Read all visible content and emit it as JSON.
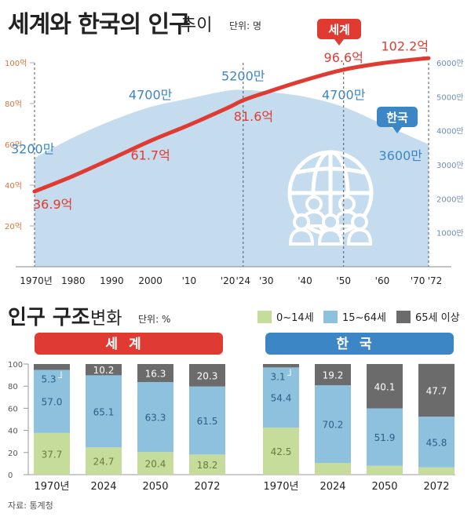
{
  "header": {
    "title_main": "세계와 한국의 인구",
    "title_sub": "추이",
    "unit": "단위: 명"
  },
  "bottom_header": {
    "title_main": "인구 구조",
    "title_sub": "변화",
    "unit": "단위: %"
  },
  "legend": [
    {
      "label": "0~14세",
      "color": "#c5dc9b"
    },
    {
      "label": "15~64세",
      "color": "#8ec1de"
    },
    {
      "label": "65세 이상",
      "color": "#6c6b6b"
    }
  ],
  "source": "자료: 통계청",
  "colors": {
    "world": "#e03b32",
    "korea": "#3d86c6",
    "korea_area": "#c5dcef",
    "grid": "#b3b3b3"
  },
  "chart_data": [
    {
      "type": "line",
      "x_tick_labels": [
        "1970년",
        "1980",
        "1990",
        "2000",
        "'10",
        "'20",
        "'24",
        "'30",
        "'40",
        "'50",
        "'60",
        "'70",
        "'72"
      ],
      "x_tick_years": [
        1970,
        1980,
        1990,
        2000,
        2010,
        2020,
        2024,
        2030,
        2040,
        2050,
        2060,
        2070,
        2072
      ],
      "xlim": [
        1970,
        2072
      ],
      "left_axis": {
        "unit": "억",
        "ticks": [
          "20억",
          "40억",
          "60억",
          "80억",
          "100억"
        ],
        "values": [
          20,
          40,
          60,
          80,
          100
        ],
        "ylim": [
          0,
          100
        ]
      },
      "right_axis": {
        "unit": "만",
        "ticks": [
          "1000만",
          "2000만",
          "3000만",
          "4000만",
          "5000만",
          "6000만"
        ],
        "values": [
          1000,
          2000,
          3000,
          4000,
          5000,
          6000
        ],
        "ylim": [
          0,
          6000
        ]
      },
      "series": [
        {
          "name": "세계",
          "axis": "left",
          "color": "#e03b32",
          "x": [
            1970,
            1980,
            1990,
            2000,
            2010,
            2020,
            2024,
            2030,
            2040,
            2050,
            2060,
            2070,
            2072
          ],
          "y": [
            36.9,
            44.5,
            53.0,
            61.7,
            69.5,
            77.9,
            81.6,
            85.5,
            91.5,
            96.6,
            99.8,
            101.9,
            102.2
          ]
        },
        {
          "name": "한국",
          "axis": "right",
          "color": "#c5dcef",
          "x": [
            1970,
            1980,
            1990,
            2000,
            2010,
            2020,
            2024,
            2030,
            2040,
            2050,
            2060,
            2070,
            2072
          ],
          "y": [
            3200,
            3800,
            4300,
            4700,
            4950,
            5180,
            5200,
            5150,
            5000,
            4700,
            4200,
            3700,
            3600
          ]
        }
      ],
      "annotations": {
        "world": [
          {
            "x": 1970,
            "text": "36.9억"
          },
          {
            "x": 2000,
            "text": "61.7억"
          },
          {
            "x": 2024,
            "text": "81.6억"
          },
          {
            "x": 2050,
            "text": "96.6억"
          },
          {
            "x": 2072,
            "text": "102.2억"
          }
        ],
        "korea": [
          {
            "x": 1970,
            "text": "3200만"
          },
          {
            "x": 2000,
            "text": "4700만"
          },
          {
            "x": 2024,
            "text": "5200만"
          },
          {
            "x": 2050,
            "text": "4700만"
          },
          {
            "x": 2072,
            "text": "3600만"
          }
        ]
      },
      "series_tags": {
        "world": "세계",
        "korea": "한국"
      },
      "grid": "dashed vertical guides at 1970, 2000, 2024, 2050, 2072"
    },
    {
      "type": "bar",
      "stacked": true,
      "percent": true,
      "y_ticks": [
        0,
        20,
        40,
        60,
        80,
        100
      ],
      "ylim": [
        0,
        100
      ],
      "groups": [
        {
          "name": "세계",
          "categories": [
            "1970년",
            "2024",
            "2050",
            "2072"
          ],
          "series": [
            {
              "name": "0~14세",
              "values": [
                37.7,
                24.7,
                20.4,
                18.2
              ]
            },
            {
              "name": "15~64세",
              "values": [
                57.0,
                65.1,
                63.3,
                61.5
              ]
            },
            {
              "name": "65세 이상",
              "values": [
                5.3,
                10.2,
                16.3,
                20.3
              ]
            }
          ]
        },
        {
          "name": "한국",
          "categories": [
            "1970년",
            "2024",
            "2050",
            "2072"
          ],
          "series": [
            {
              "name": "0~14세",
              "values": [
                42.5,
                10.6,
                8.0,
                6.6
              ]
            },
            {
              "name": "15~64세",
              "values": [
                54.4,
                70.2,
                51.9,
                45.8
              ]
            },
            {
              "name": "65세 이상",
              "values": [
                3.1,
                19.2,
                40.1,
                47.7
              ]
            }
          ]
        }
      ],
      "value_labels": {
        "세계": [
          [
            "37.7",
            "57.0",
            "5.3"
          ],
          [
            "24.7",
            "65.1",
            "10.2"
          ],
          [
            "20.4",
            "63.3",
            "16.3"
          ],
          [
            "18.2",
            "61.5",
            "20.3"
          ]
        ],
        "한국": [
          [
            "42.5",
            "54.4",
            "3.1"
          ],
          [
            "10.6",
            "70.2",
            "19.2"
          ],
          [
            "8.0",
            "51.9",
            "40.1"
          ],
          [
            "6.6",
            "45.8",
            "47.7"
          ]
        ]
      }
    }
  ]
}
